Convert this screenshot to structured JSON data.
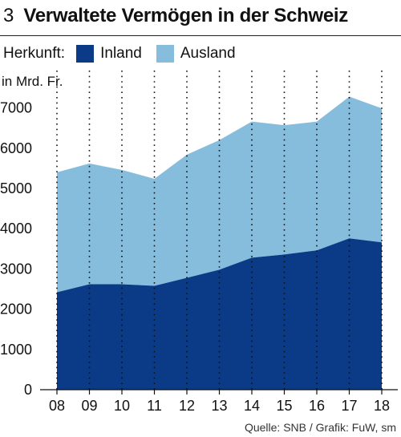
{
  "header": {
    "figure_number": "3",
    "title": "Verwaltete Vermögen in der Schweiz"
  },
  "legend": {
    "caption": "Herkunft:",
    "items": [
      {
        "label": "Inland",
        "color": "#0b3a86"
      },
      {
        "label": "Ausland",
        "color": "#86bddc"
      }
    ]
  },
  "footer": {
    "source": "Quelle: SNB / Grafik: FuW, sm"
  },
  "chart_data": {
    "type": "area",
    "stacked": true,
    "unit_label": "in Mrd. Fr.",
    "categories": [
      "08",
      "09",
      "10",
      "11",
      "12",
      "13",
      "14",
      "15",
      "16",
      "17",
      "18"
    ],
    "series": [
      {
        "name": "Inland",
        "color": "#0b3a86",
        "values": [
          2420,
          2620,
          2620,
          2580,
          2780,
          2980,
          3280,
          3360,
          3460,
          3760,
          3660
        ]
      },
      {
        "name": "Ausland",
        "color": "#86bddc",
        "values": [
          2980,
          3000,
          2840,
          2660,
          3060,
          3220,
          3380,
          3210,
          3200,
          3520,
          3330
        ]
      }
    ],
    "totals": [
      5400,
      5620,
      5460,
      5240,
      5840,
      6200,
      6660,
      6570,
      6660,
      7280,
      6990
    ],
    "yticks": [
      0,
      1000,
      2000,
      3000,
      4000,
      5000,
      6000,
      7000
    ],
    "ylim": [
      0,
      7600
    ],
    "grid": "vertical dotted",
    "legend_position": "top-left"
  }
}
